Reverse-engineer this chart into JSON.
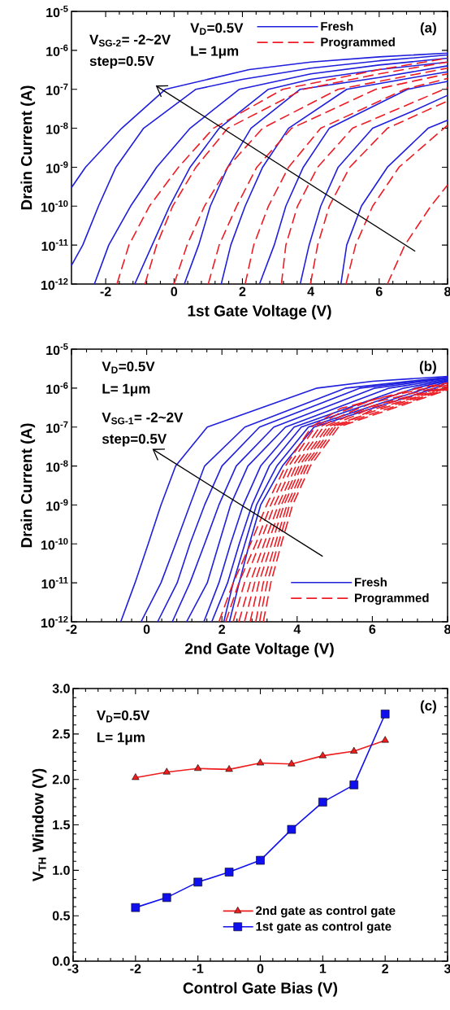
{
  "chart_data": [
    {
      "type": "line",
      "xlabel": "1st Gate Voltage (V)",
      "ylabel": "Drain Current (A)",
      "log": true,
      "legend": "top",
      "annotations": [
        "V$_{SG-2}$= -2~2V",
        "step=0.5V",
        "V$_{D}$=0.5V",
        "L= 1μm",
        "(a)"
      ],
      "xlim": [
        -3,
        8
      ],
      "ylim": [
        1e-12,
        1e-05
      ],
      "xticks": [
        -2,
        0,
        2,
        4,
        6,
        8
      ],
      "yticks": [
        {
          "value": 1e-12,
          "label": "10$^{-12}$"
        },
        {
          "value": 1e-11,
          "label": "10$^{-11}$"
        },
        {
          "value": 1e-10,
          "label": "10$^{-10}$"
        },
        {
          "value": 1e-09,
          "label": "10$^{-9}$"
        },
        {
          "value": 1e-08,
          "label": "10$^{-8}$"
        },
        {
          "value": 1e-07,
          "label": "10$^{-7}$"
        },
        {
          "value": 1e-06,
          "label": "10$^{-6}$"
        },
        {
          "value": 1e-05,
          "label": "10$^{-5}$"
        }
      ],
      "series": [
        {
          "name": "Fresh",
          "color": "#1f1fdd",
          "x": [
            -3,
            -2.59,
            -1.53,
            -0.25,
            2.2,
            4,
            6,
            8
          ],
          "values": [
            3e-10,
            1e-09,
            1e-08,
            1e-07,
            3.2e-07,
            5e-07,
            6.8e-07,
            8.5e-07
          ]
        },
        {
          "color": "#1f1fdd",
          "x": [
            -3,
            -2.67,
            -2.21,
            -1.7,
            -0.89,
            0.64,
            2,
            4,
            6,
            8
          ],
          "values": [
            3e-12,
            1e-11,
            1e-10,
            1e-09,
            1e-08,
            1e-07,
            1.8e-07,
            3.5e-07,
            5.4e-07,
            7.6e-07
          ]
        },
        {
          "color": "#1f1fdd",
          "x": [
            -2.33,
            -1.91,
            -1.27,
            -0.51,
            0.47,
            1.91,
            4,
            6,
            8
          ],
          "values": [
            1e-12,
            1e-11,
            1e-10,
            1e-09,
            1e-08,
            1e-07,
            2.5e-07,
            4.2e-07,
            6.3e-07
          ]
        },
        {
          "color": "#1f1fdd",
          "x": [
            -1.15,
            -0.64,
            -0.13,
            0.47,
            1.32,
            2.76,
            4,
            6,
            8
          ],
          "values": [
            1e-12,
            1e-11,
            1e-10,
            1e-09,
            1e-08,
            1e-07,
            1.8e-07,
            3.2e-07,
            5e-07
          ]
        },
        {
          "color": "#1f1fdd",
          "x": [
            0.3,
            0.72,
            1.06,
            1.57,
            2.25,
            3.69,
            6,
            8
          ],
          "values": [
            1e-12,
            1e-11,
            1e-10,
            1e-09,
            1e-08,
            1e-07,
            2e-07,
            4e-07
          ]
        },
        {
          "color": "#1f1fdd",
          "x": [
            1.38,
            1.66,
            2.08,
            2.59,
            3.35,
            5.05,
            7,
            8
          ],
          "values": [
            1e-12,
            1e-11,
            1e-10,
            1e-09,
            1e-08,
            1e-07,
            2e-07,
            2.8e-07
          ]
        },
        {
          "color": "#1f1fdd",
          "x": [
            2.5,
            2.93,
            3.27,
            3.78,
            4.54,
            6.83,
            8
          ],
          "values": [
            1e-12,
            1e-11,
            1e-10,
            1e-09,
            1e-08,
            1e-07,
            1.6e-07
          ]
        },
        {
          "color": "#1f1fdd",
          "x": [
            3.69,
            3.95,
            4.29,
            4.8,
            5.81,
            7,
            8
          ],
          "values": [
            1e-12,
            1e-11,
            1e-10,
            1e-09,
            1e-08,
            2.8e-08,
            7e-08
          ]
        },
        {
          "color": "#1f1fdd",
          "x": [
            4.88,
            5.05,
            5.48,
            6.24,
            7.43,
            8
          ],
          "values": [
            1e-12,
            1e-11,
            1e-10,
            1e-09,
            1e-08,
            1.6e-08
          ]
        },
        {
          "name": "Programmed",
          "color": "#ee1c24",
          "line_style": "dashed",
          "x": [
            -1.67,
            -1.32,
            -0.72,
            0.13,
            1.15,
            3.18,
            6,
            8
          ],
          "values": [
            1e-12,
            1e-11,
            1e-10,
            1e-09,
            1e-08,
            1e-07,
            3.2e-07,
            6.3e-07
          ]
        },
        {
          "color": "#ee1c24",
          "line_style": "dashed",
          "x": [
            -0.85,
            -0.51,
            -0.04,
            0.64,
            1.57,
            3.78,
            6,
            8
          ],
          "values": [
            1e-12,
            1e-11,
            1e-10,
            1e-09,
            1e-08,
            1e-07,
            2.5e-07,
            5e-07
          ]
        },
        {
          "color": "#ee1c24",
          "line_style": "dashed",
          "x": [
            0,
            0.38,
            0.89,
            1.57,
            2.59,
            4.8,
            8
          ],
          "values": [
            1e-12,
            1e-11,
            1e-10,
            1e-09,
            1e-08,
            1e-07,
            3.5e-07
          ]
        },
        {
          "color": "#ee1c24",
          "line_style": "dashed",
          "x": [
            1.0,
            1.32,
            1.83,
            2.42,
            3.44,
            5.9,
            8
          ],
          "values": [
            1e-12,
            1e-11,
            1e-10,
            1e-09,
            1e-08,
            1e-07,
            2.5e-07
          ]
        },
        {
          "color": "#ee1c24",
          "line_style": "dashed",
          "x": [
            2.08,
            2.33,
            2.76,
            3.35,
            4.29,
            6.75,
            8
          ],
          "values": [
            1e-12,
            1e-11,
            1e-10,
            1e-09,
            1e-08,
            1e-07,
            1.9e-07
          ]
        },
        {
          "color": "#ee1c24",
          "line_style": "dashed",
          "x": [
            3.14,
            3.27,
            3.61,
            4.2,
            5.22,
            8
          ],
          "values": [
            1e-12,
            1e-11,
            1e-10,
            1e-09,
            1e-08,
            1.1e-07
          ]
        },
        {
          "color": "#ee1c24",
          "line_style": "dashed",
          "x": [
            3.99,
            4.2,
            4.54,
            5.14,
            6.24,
            8
          ],
          "values": [
            1e-12,
            1e-11,
            1e-10,
            1e-09,
            1e-08,
            5e-08
          ]
        },
        {
          "color": "#ee1c24",
          "line_style": "dashed",
          "x": [
            5.03,
            5.31,
            5.81,
            6.58,
            8
          ],
          "values": [
            1e-12,
            1e-11,
            1e-10,
            1e-09,
            1.2e-08
          ]
        },
        {
          "color": "#ee1c24",
          "line_style": "dashed",
          "x": [
            6.24,
            6.75,
            7.51,
            8
          ],
          "values": [
            1e-12,
            1e-11,
            1e-10,
            3.5e-10
          ]
        }
      ]
    },
    {
      "type": "line",
      "xlabel": "2nd Gate Voltage (V)",
      "ylabel": "Drain Current (A)",
      "log": true,
      "legend": "bottom right",
      "annotations": [
        "V$_{D}$=0.5V",
        "L= 1μm",
        "V$_{SG-1}$= -2~2V",
        "step=0.5V",
        "(b)"
      ],
      "xlim": [
        -2,
        8
      ],
      "ylim": [
        1e-12,
        1e-05
      ],
      "xticks": [
        -2,
        0,
        2,
        4,
        6,
        8
      ],
      "yticks": [
        {
          "value": 1e-12,
          "label": "10$^{-12}$"
        },
        {
          "value": 1e-11,
          "label": "10$^{-11}$"
        },
        {
          "value": 1e-10,
          "label": "10$^{-10}$"
        },
        {
          "value": 1e-09,
          "label": "10$^{-9}$"
        },
        {
          "value": 1e-08,
          "label": "10$^{-8}$"
        },
        {
          "value": 1e-07,
          "label": "10$^{-7}$"
        },
        {
          "value": 1e-06,
          "label": "10$^{-6}$"
        },
        {
          "value": 1e-05,
          "label": "10$^{-5}$"
        }
      ],
      "series": [
        {
          "name": "Fresh",
          "color": "#1f1fdd",
          "x": [
            -0.69,
            -0.31,
            0.04,
            0.38,
            0.77,
            1.61,
            4.53,
            6,
            8
          ],
          "values": [
            1e-12,
            1e-11,
            1e-10,
            1e-09,
            1e-08,
            1e-07,
            1e-06,
            1.5e-06,
            2e-06
          ]
        },
        {
          "color": "#1f1fdd",
          "x": [
            -0.15,
            0.38,
            0.77,
            1.15,
            1.54,
            2.61,
            5.3,
            8
          ],
          "values": [
            1e-12,
            1e-11,
            1e-10,
            1e-09,
            1e-08,
            1e-07,
            1e-06,
            1.9e-06
          ]
        },
        {
          "color": "#1f1fdd",
          "x": [
            0.29,
            0.81,
            1.15,
            1.54,
            2.0,
            3.0,
            5.68,
            8
          ],
          "values": [
            1e-12,
            1e-11,
            1e-10,
            1e-09,
            1e-08,
            1e-07,
            1e-06,
            1.85e-06
          ]
        },
        {
          "color": "#1f1fdd",
          "x": [
            0.68,
            1.15,
            1.54,
            1.92,
            2.38,
            3.38,
            6.07,
            8
          ],
          "values": [
            1e-12,
            1e-11,
            1e-10,
            1e-09,
            1e-08,
            1e-07,
            1e-06,
            1.8e-06
          ]
        },
        {
          "color": "#1f1fdd",
          "x": [
            1.06,
            1.61,
            1.92,
            2.23,
            2.69,
            3.69,
            6.45,
            8
          ],
          "values": [
            1e-12,
            1e-11,
            1e-10,
            1e-09,
            1e-08,
            1e-07,
            1e-06,
            1.7e-06
          ]
        },
        {
          "color": "#1f1fdd",
          "x": [
            1.52,
            1.92,
            2.23,
            2.57,
            3.03,
            3.92,
            6.84,
            8
          ],
          "values": [
            1e-12,
            1e-11,
            1e-10,
            1e-09,
            1e-08,
            1e-07,
            1e-06,
            1.6e-06
          ]
        },
        {
          "color": "#1f1fdd",
          "x": [
            1.73,
            2.15,
            2.46,
            2.8,
            3.26,
            4.11,
            7.14,
            8
          ],
          "values": [
            1e-12,
            1e-11,
            1e-10,
            1e-09,
            1e-08,
            1e-07,
            1e-06,
            1.55e-06
          ]
        },
        {
          "color": "#1f1fdd",
          "x": [
            2.05,
            2.3,
            2.61,
            2.92,
            3.46,
            4.3,
            7.45,
            8
          ],
          "values": [
            1e-12,
            1e-11,
            1e-10,
            1e-09,
            1e-08,
            1e-07,
            1e-06,
            1.5e-06
          ]
        },
        {
          "color": "#1f1fdd",
          "x": [
            2.2,
            2.46,
            2.73,
            3.03,
            3.61,
            4.45,
            7.68,
            8
          ],
          "values": [
            1e-12,
            1e-11,
            1e-10,
            1e-09,
            1e-08,
            1e-07,
            1e-06,
            1.4e-06
          ]
        },
        {
          "name": "Programmed",
          "color": "#ee1c24",
          "line_style": "dashed",
          "x": [
            1.92,
            2.3,
            2.76,
            3.19,
            3.69,
            4.38,
            5.15,
            7.22,
            8
          ],
          "values": [
            1e-12,
            1e-11,
            1e-10,
            1e-09,
            1e-08,
            1e-07,
            3e-07,
            1e-06,
            1.35e-06
          ]
        },
        {
          "color": "#ee1c24",
          "line_style": "dashed",
          "x": [
            2.1,
            2.45,
            2.9,
            3.3,
            3.78,
            4.48,
            5.2,
            6,
            8
          ],
          "values": [
            1e-12,
            1e-11,
            1e-10,
            1e-09,
            1e-08,
            1e-07,
            2.5e-07,
            5e-07,
            1.3e-06
          ]
        },
        {
          "color": "#ee1c24",
          "line_style": "dashed",
          "x": [
            2.3,
            2.6,
            3.0,
            3.4,
            3.88,
            4.6,
            5.3,
            6,
            8
          ],
          "values": [
            1e-12,
            1e-11,
            1e-10,
            1e-09,
            1e-08,
            1e-07,
            2.2e-07,
            4.2e-07,
            1.2e-06
          ]
        },
        {
          "color": "#ee1c24",
          "line_style": "dashed",
          "x": [
            2.45,
            2.75,
            3.12,
            3.5,
            3.97,
            4.7,
            5.4,
            6,
            8
          ],
          "values": [
            1e-12,
            1e-11,
            1e-10,
            1e-09,
            1e-08,
            1e-07,
            2e-07,
            3.5e-07,
            1.1e-06
          ]
        },
        {
          "color": "#ee1c24",
          "line_style": "dashed",
          "x": [
            2.6,
            2.87,
            3.22,
            3.58,
            4.05,
            4.8,
            5.5,
            6,
            8
          ],
          "values": [
            1e-12,
            1e-11,
            1e-10,
            1e-09,
            1e-08,
            1e-07,
            1.9e-07,
            3.2e-07,
            1.05e-06
          ]
        },
        {
          "color": "#ee1c24",
          "line_style": "dashed",
          "x": [
            2.75,
            2.98,
            3.32,
            3.65,
            4.12,
            4.88,
            5.6,
            6,
            8
          ],
          "values": [
            1e-12,
            1e-11,
            1e-10,
            1e-09,
            1e-08,
            1e-07,
            1.8e-07,
            2.8e-07,
            1e-06
          ]
        },
        {
          "color": "#ee1c24",
          "line_style": "dashed",
          "x": [
            2.9,
            3.1,
            3.42,
            3.73,
            4.2,
            4.95,
            6,
            8
          ],
          "values": [
            1e-12,
            1e-11,
            1e-10,
            1e-09,
            1e-08,
            1e-07,
            2.5e-07,
            1e-06
          ]
        },
        {
          "color": "#ee1c24",
          "line_style": "dashed",
          "x": [
            3.0,
            3.2,
            3.5,
            3.8,
            4.27,
            5.02,
            6,
            8
          ],
          "values": [
            1e-12,
            1e-11,
            1e-10,
            1e-09,
            1e-08,
            1e-07,
            2.2e-07,
            9.5e-07
          ]
        },
        {
          "color": "#ee1c24",
          "line_style": "dashed",
          "x": [
            3.1,
            3.3,
            3.58,
            3.88,
            4.35,
            5.1,
            6,
            8
          ],
          "values": [
            1e-12,
            1e-11,
            1e-10,
            1e-09,
            1e-08,
            1e-07,
            2e-07,
            9e-07
          ]
        }
      ]
    },
    {
      "type": "line",
      "xlabel": "Control Gate Bias (V)",
      "ylabel": "V$_{TH}$ Window (V)",
      "legend": "bottom",
      "annotations": [
        "V$_{D}$=0.5V",
        "L= 1μm",
        "(c)"
      ],
      "xlim": [
        -3,
        3
      ],
      "ylim": [
        0,
        3
      ],
      "xticks": [
        -3,
        -2,
        -1,
        0,
        1,
        2,
        3
      ],
      "yticks": [
        {
          "value": 0,
          "label": "0.0"
        },
        0.5,
        {
          "value": 1,
          "label": "1.0"
        },
        1.5,
        {
          "value": 2,
          "label": "2.0"
        },
        2.5,
        {
          "value": 3,
          "label": "3.0"
        }
      ],
      "x": [
        -2,
        -1.5,
        -1,
        -0.5,
        0,
        0.5,
        1,
        1.5,
        2
      ],
      "series": [
        {
          "name": "2nd gate as control gate",
          "color": "#ee1c1c",
          "marker": "triangle",
          "values": [
            2.02,
            2.08,
            2.12,
            2.11,
            2.18,
            2.17,
            2.26,
            2.31,
            2.43
          ]
        },
        {
          "name": "1st gate as control gate",
          "color": "#1010ee",
          "marker": "square",
          "values": [
            0.59,
            0.7,
            0.87,
            0.98,
            1.11,
            1.45,
            1.75,
            1.94,
            2.72
          ]
        }
      ]
    }
  ]
}
